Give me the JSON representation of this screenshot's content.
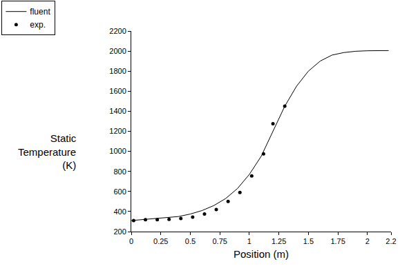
{
  "chart_data": {
    "type": "line",
    "x_label": "Position (m)",
    "y_label": "Static Temperature (K)",
    "series": [
      {
        "name": "fluent",
        "type": "line",
        "color": "#000000",
        "line_style": "solid",
        "x": [
          0,
          0.1,
          0.2,
          0.3,
          0.4,
          0.5,
          0.6,
          0.7,
          0.8,
          0.9,
          1.0,
          1.1,
          1.2,
          1.3,
          1.4,
          1.5,
          1.6,
          1.7,
          1.8,
          1.9,
          2.0,
          2.1,
          2.18
        ],
        "values": [
          310,
          320,
          328,
          335,
          350,
          375,
          410,
          460,
          530,
          630,
          770,
          950,
          1200,
          1450,
          1650,
          1800,
          1900,
          1960,
          1985,
          1998,
          2003,
          2005,
          2005
        ]
      },
      {
        "name": "exp.",
        "type": "scatter",
        "color": "#000000",
        "marker": "circle",
        "x": [
          0.02,
          0.12,
          0.22,
          0.32,
          0.42,
          0.52,
          0.62,
          0.72,
          0.82,
          0.92,
          1.02,
          1.12,
          1.2,
          1.3
        ],
        "values": [
          310,
          318,
          318,
          322,
          330,
          345,
          375,
          420,
          500,
          590,
          755,
          975,
          1275,
          1450
        ]
      }
    ],
    "xlim": [
      0,
      2.2
    ],
    "xticks": [
      0,
      0.25,
      0.5,
      0.75,
      1,
      1.25,
      1.5,
      1.75,
      2,
      2.2
    ],
    "ylim": [
      200,
      2200
    ],
    "yticks": [
      200,
      400,
      600,
      800,
      1000,
      1200,
      1400,
      1600,
      1800,
      2000,
      2200
    ],
    "grid": false,
    "legend": "upper left"
  }
}
